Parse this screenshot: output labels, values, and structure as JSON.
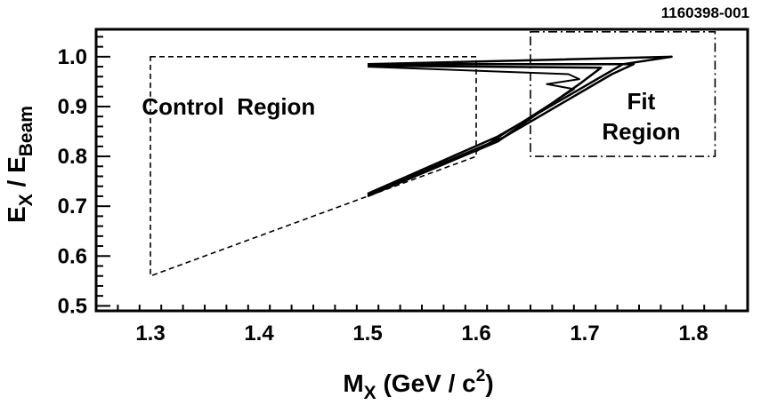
{
  "figure_id": "1160398-001",
  "chart_data": {
    "type": "line",
    "title": "",
    "xlabel": {
      "main": "M",
      "sub": "X",
      "rest": " (GeV / c",
      "sup": "2",
      "end": ")"
    },
    "ylabel": {
      "main": "E",
      "sub1": "X",
      "mid": " / E",
      "sub2": "Beam"
    },
    "xlim": [
      1.25,
      1.85
    ],
    "ylim": [
      0.49,
      1.055
    ],
    "x_ticks": [
      1.3,
      1.4,
      1.5,
      1.6,
      1.7,
      1.8
    ],
    "x_tick_labels": [
      "1.3",
      "1.4",
      "1.5",
      "1.6",
      "1.7",
      "1.8"
    ],
    "y_ticks": [
      0.5,
      0.6,
      0.7,
      0.8,
      0.9,
      1.0
    ],
    "y_tick_labels": [
      "0.5",
      "0.6",
      "0.7",
      "0.8",
      "0.9",
      "1.0"
    ],
    "grid": false,
    "regions": [
      {
        "label": "Control  Region",
        "style": "dashed",
        "polygon": [
          [
            1.3,
            1.0
          ],
          [
            1.6,
            1.0
          ],
          [
            1.6,
            0.8
          ],
          [
            1.3,
            0.56
          ]
        ]
      },
      {
        "label_lines": [
          "Fit",
          "Region"
        ],
        "style": "dash-dot",
        "rect": {
          "x0": 1.65,
          "x1": 1.82,
          "y0": 0.8,
          "y1": 1.05
        }
      }
    ],
    "series": [
      {
        "width": 2.5,
        "points": [
          [
            1.5,
            0.985
          ],
          [
            1.78,
            1.0
          ],
          [
            1.735,
            0.985
          ],
          [
            1.62,
            0.84
          ],
          [
            1.5,
            0.725
          ]
        ]
      },
      {
        "width": 2.5,
        "points": [
          [
            1.5,
            0.985
          ],
          [
            1.745,
            0.985
          ],
          [
            1.725,
            0.965
          ],
          [
            1.625,
            0.838
          ],
          [
            1.5,
            0.723
          ]
        ]
      },
      {
        "width": 2.5,
        "points": [
          [
            1.5,
            0.982
          ],
          [
            1.715,
            0.978
          ],
          [
            1.695,
            0.945
          ],
          [
            1.62,
            0.83
          ],
          [
            1.5,
            0.72
          ]
        ]
      },
      {
        "width": 2,
        "points": [
          [
            1.5,
            0.98
          ],
          [
            1.685,
            0.965
          ],
          [
            1.695,
            0.955
          ],
          [
            1.665,
            0.945
          ],
          [
            1.69,
            0.935
          ],
          [
            1.6,
            0.81
          ]
        ]
      }
    ]
  }
}
